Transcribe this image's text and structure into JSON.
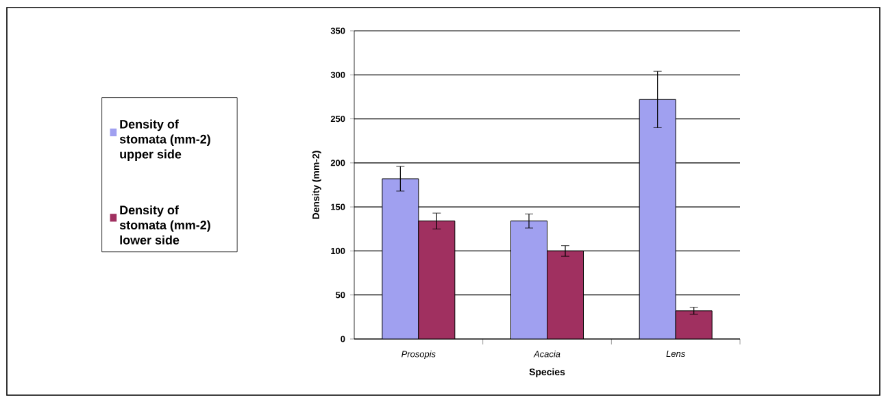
{
  "chart_data": {
    "type": "bar",
    "xlabel": "Species",
    "ylabel": "Density (mm-2)",
    "categories": [
      "Prosopis",
      "Acacia",
      "Lens"
    ],
    "series": [
      {
        "name": "Density of stomata (mm-2) upper side",
        "color": "#a0a0f0",
        "values": [
          182,
          134,
          272
        ],
        "errors": [
          14,
          8,
          32
        ]
      },
      {
        "name": "Density of stomata (mm-2) lower side",
        "color": "#a03060",
        "values": [
          134,
          100,
          32
        ],
        "errors": [
          9,
          6,
          4
        ]
      }
    ],
    "ylim": [
      0,
      350
    ],
    "yticks": [
      0,
      50,
      100,
      150,
      200,
      250,
      300,
      350
    ],
    "grid": "y",
    "legend": "left"
  }
}
